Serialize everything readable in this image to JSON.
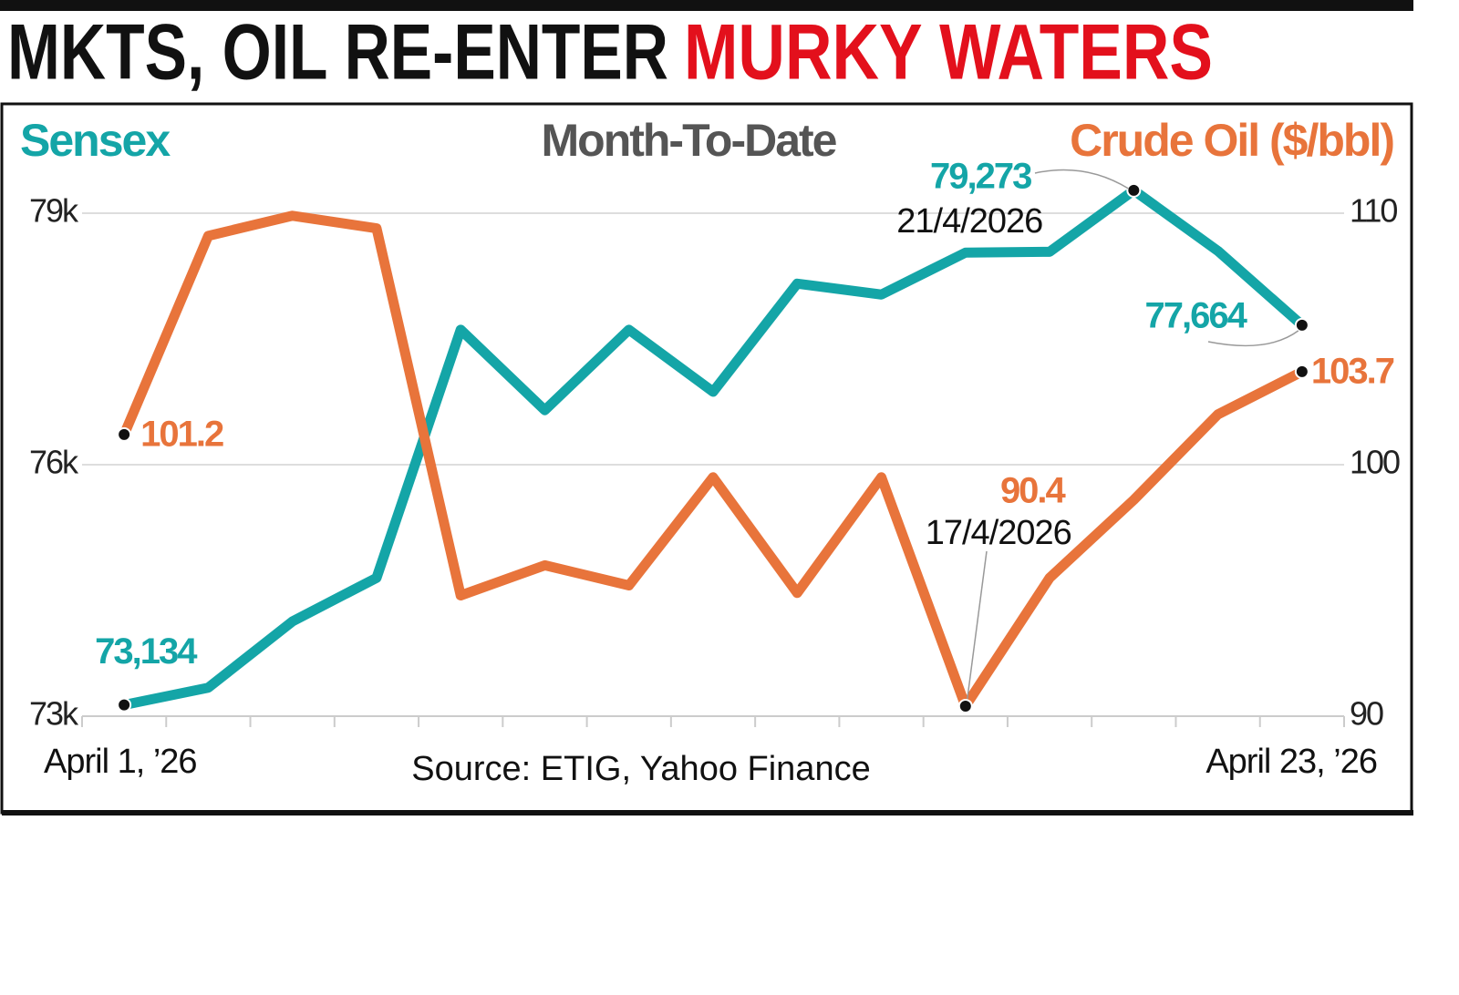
{
  "chart_data": {
    "type": "line",
    "title": [
      "MKTS, OIL RE-ENTER",
      "MURKY WATERS"
    ],
    "title_colors": [
      "#111111",
      "#e3101c"
    ],
    "subtitle": "Month-To-Date",
    "source": "Source: ETIG, Yahoo Finance",
    "categories": [
      "April 1, ’26",
      null,
      null,
      null,
      null,
      null,
      null,
      null,
      null,
      null,
      null,
      null,
      null,
      null,
      "April 23, ’26"
    ],
    "ylim": [
      73000,
      79600
    ],
    "yticks": [
      {
        "value": 73000,
        "label": "73k"
      },
      {
        "value": 76000,
        "label": "76k"
      },
      {
        "value": 79000,
        "label": "79k"
      }
    ],
    "y2lim": [
      90,
      112
    ],
    "y2ticks": [
      90,
      100,
      110
    ],
    "grid": true,
    "series": [
      {
        "name": "Sensex",
        "color": "#14a5a7",
        "values": [
          73134,
          73340,
          74130,
          74650,
          77610,
          76650,
          77610,
          76870,
          78160,
          78030,
          78530,
          78540,
          79273,
          78550,
          77664
        ],
        "value_labels": [
          "73,134",
          null,
          null,
          null,
          null,
          null,
          null,
          null,
          null,
          null,
          null,
          null,
          "79,273",
          null,
          "77,664"
        ]
      },
      {
        "name": "Crude Oil ($/bbl)",
        "color": "#e8743b",
        "axis": "y2",
        "values": [
          101.2,
          109.1,
          109.9,
          109.4,
          94.8,
          96.0,
          95.2,
          99.5,
          94.9,
          99.5,
          90.4,
          95.5,
          98.6,
          102.0,
          103.7
        ],
        "value_labels": [
          "101.2",
          null,
          null,
          null,
          null,
          null,
          null,
          null,
          null,
          null,
          "90.4",
          null,
          null,
          null,
          "103.7"
        ]
      }
    ],
    "annotations": [
      "21/4/2026",
      "17/4/2026"
    ]
  }
}
